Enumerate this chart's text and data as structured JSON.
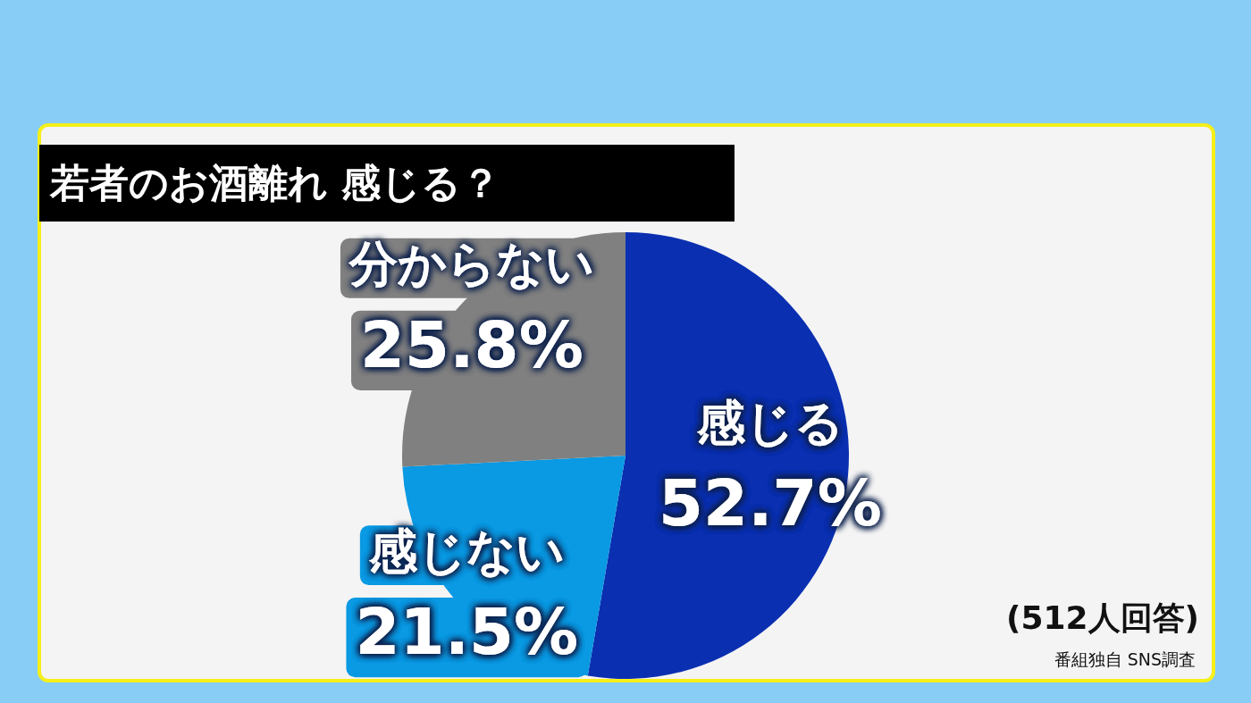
{
  "chart_data": {
    "type": "pie",
    "title": "若者のお酒離れ 感じる？",
    "categories": [
      "感じる",
      "感じない",
      "分からない"
    ],
    "values": [
      52.7,
      21.5,
      25.8
    ],
    "colors": [
      "#0a2fb0",
      "#0a99e3",
      "#808080"
    ],
    "value_labels": [
      "52.7%",
      "21.5%",
      "25.8%"
    ],
    "annotations": [
      "(512人回答)",
      "番組独自 SNS調査"
    ]
  }
}
